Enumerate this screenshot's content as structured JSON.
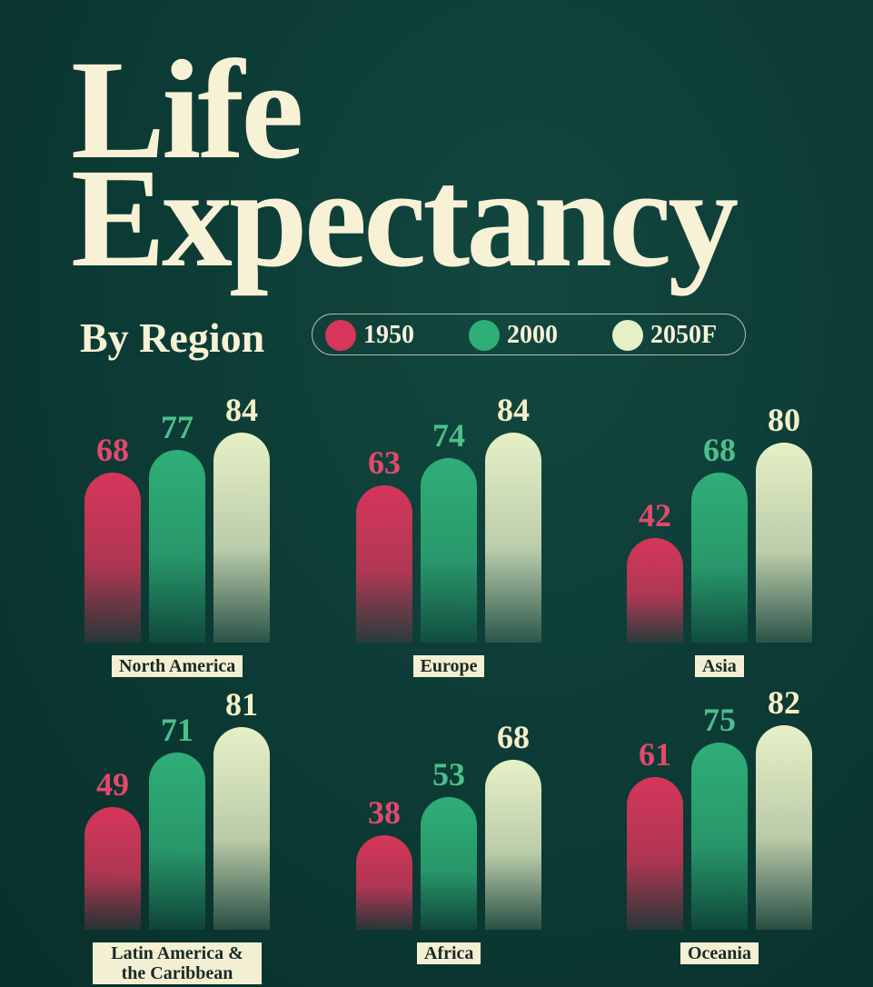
{
  "chart_data": {
    "type": "bar",
    "title": "Life Expectancy",
    "subtitle": "By Region",
    "categories": [
      "North America",
      "Europe",
      "Asia",
      "Latin America & the Caribbean",
      "Africa",
      "Oceania"
    ],
    "series": [
      {
        "name": "1950",
        "color": "#d6365a",
        "values": [
          68,
          63,
          42,
          49,
          38,
          61
        ]
      },
      {
        "name": "2000",
        "color": "#2fae78",
        "values": [
          77,
          74,
          68,
          71,
          53,
          75
        ]
      },
      {
        "name": "2050F",
        "color": "#e6f0c6",
        "values": [
          84,
          84,
          80,
          81,
          68,
          82
        ]
      }
    ]
  }
}
